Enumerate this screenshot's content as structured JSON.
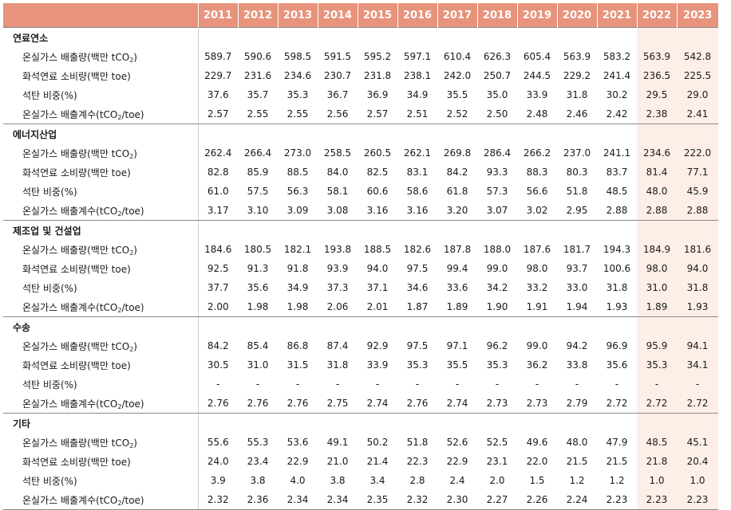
{
  "years": [
    "2011",
    "2012",
    "2013",
    "2014",
    "2015",
    "2016",
    "2017",
    "2018",
    "2019",
    "2020",
    "2021",
    "2022",
    "2023"
  ],
  "sections": [
    {
      "category": "연료연소",
      "rows": [
        {
          "label": "온실가스 배출량(백만 tCO₂)",
          "values": [
            "589.7",
            "590.6",
            "598.5",
            "591.5",
            "595.2",
            "597.1",
            "610.4",
            "626.3",
            "605.4",
            "563.9",
            "583.2",
            "563.9",
            "542.8"
          ]
        },
        {
          "label": "화석연료 소비량(백만 toe)",
          "values": [
            "229.7",
            "231.6",
            "234.6",
            "230.7",
            "231.8",
            "238.1",
            "242.0",
            "250.7",
            "244.5",
            "229.2",
            "241.4",
            "236.5",
            "225.5"
          ]
        },
        {
          "label": "석탄 비중(%)",
          "values": [
            "37.6",
            "35.7",
            "35.3",
            "36.7",
            "36.9",
            "34.9",
            "35.5",
            "35.0",
            "33.9",
            "31.8",
            "30.2",
            "29.5",
            "29.0"
          ]
        },
        {
          "label": "온실가스 배출계수(tCO₂/toe)",
          "values": [
            "2.57",
            "2.55",
            "2.55",
            "2.56",
            "2.57",
            "2.51",
            "2.52",
            "2.50",
            "2.48",
            "2.46",
            "2.42",
            "2.38",
            "2.41"
          ]
        }
      ]
    },
    {
      "category": "에너지산업",
      "rows": [
        {
          "label": "온실가스 배출량(백만 tCO₂)",
          "values": [
            "262.4",
            "266.4",
            "273.0",
            "258.5",
            "260.5",
            "262.1",
            "269.8",
            "286.4",
            "266.2",
            "237.0",
            "241.1",
            "234.6",
            "222.0"
          ]
        },
        {
          "label": "화석연료 소비량(백만 toe)",
          "values": [
            "82.8",
            "85.9",
            "88.5",
            "84.0",
            "82.5",
            "83.1",
            "84.2",
            "93.3",
            "88.3",
            "80.3",
            "83.7",
            "81.4",
            "77.1"
          ]
        },
        {
          "label": "석탄 비중(%)",
          "values": [
            "61.0",
            "57.5",
            "56.3",
            "58.1",
            "60.6",
            "58.6",
            "61.8",
            "57.3",
            "56.6",
            "51.8",
            "48.5",
            "48.0",
            "45.9"
          ]
        },
        {
          "label": "온실가스 배출계수(tCO₂/toe)",
          "values": [
            "3.17",
            "3.10",
            "3.09",
            "3.08",
            "3.16",
            "3.16",
            "3.20",
            "3.07",
            "3.02",
            "2.95",
            "2.88",
            "2.88",
            "2.88"
          ]
        }
      ]
    },
    {
      "category": "제조업 및 건설업",
      "rows": [
        {
          "label": "온실가스 배출량(백만 tCO₂)",
          "values": [
            "184.6",
            "180.5",
            "182.1",
            "193.8",
            "188.5",
            "182.6",
            "187.8",
            "188.0",
            "187.6",
            "181.7",
            "194.3",
            "184.9",
            "181.6"
          ]
        },
        {
          "label": "화석연료 소비량(백만 toe)",
          "values": [
            "92.5",
            "91.3",
            "91.8",
            "93.9",
            "94.0",
            "97.5",
            "99.4",
            "99.0",
            "98.0",
            "93.7",
            "100.6",
            "98.0",
            "94.0"
          ]
        },
        {
          "label": "석탄 비중(%)",
          "values": [
            "37.7",
            "35.6",
            "34.9",
            "37.3",
            "37.1",
            "34.6",
            "33.6",
            "34.2",
            "33.2",
            "33.0",
            "31.8",
            "31.0",
            "31.8"
          ]
        },
        {
          "label": "온실가스 배출계수(tCO₂/toe)",
          "values": [
            "2.00",
            "1.98",
            "1.98",
            "2.06",
            "2.01",
            "1.87",
            "1.89",
            "1.90",
            "1.91",
            "1.94",
            "1.93",
            "1.89",
            "1.93"
          ]
        }
      ]
    },
    {
      "category": "수송",
      "rows": [
        {
          "label": "온실가스 배출량(백만 tCO₂)",
          "values": [
            "84.2",
            "85.4",
            "86.8",
            "87.4",
            "92.9",
            "97.5",
            "97.1",
            "96.2",
            "99.0",
            "94.2",
            "96.9",
            "95.9",
            "94.1"
          ]
        },
        {
          "label": "화석연료 소비량(백만 toe)",
          "values": [
            "30.5",
            "31.0",
            "31.5",
            "31.8",
            "33.9",
            "35.3",
            "35.5",
            "35.3",
            "36.2",
            "33.8",
            "35.6",
            "35.3",
            "34.1"
          ]
        },
        {
          "label": "석탄 비중(%)",
          "values": [
            "-",
            "-",
            "-",
            "-",
            "-",
            "-",
            "-",
            "-",
            "-",
            "-",
            "-",
            "-",
            "-"
          ]
        },
        {
          "label": "온실가스 배출계수(tCO₂/toe)",
          "values": [
            "2.76",
            "2.76",
            "2.76",
            "2.75",
            "2.74",
            "2.76",
            "2.74",
            "2.73",
            "2.73",
            "2.79",
            "2.72",
            "2.72",
            "2.72"
          ]
        }
      ]
    },
    {
      "category": "기타",
      "rows": [
        {
          "label": "온실가스 배출량(백만 tCO₂)",
          "values": [
            "55.6",
            "55.3",
            "53.6",
            "49.1",
            "50.2",
            "51.8",
            "52.6",
            "52.5",
            "49.6",
            "48.0",
            "47.9",
            "48.5",
            "45.1"
          ]
        },
        {
          "label": "화석연료 소비량(백만 toe)",
          "values": [
            "24.0",
            "23.4",
            "22.9",
            "21.0",
            "21.4",
            "22.3",
            "22.9",
            "23.1",
            "22.0",
            "21.5",
            "21.5",
            "21.8",
            "20.4"
          ]
        },
        {
          "label": "석탄 비중(%)",
          "values": [
            "3.9",
            "3.8",
            "4.0",
            "3.8",
            "3.4",
            "2.8",
            "2.4",
            "2.0",
            "1.5",
            "1.2",
            "1.2",
            "1.0",
            "1.0"
          ]
        },
        {
          "label": "온실가스 배출계수(tCO₂/toe)",
          "values": [
            "2.32",
            "2.36",
            "2.34",
            "2.34",
            "2.35",
            "2.32",
            "2.30",
            "2.27",
            "2.26",
            "2.24",
            "2.23",
            "2.23",
            "2.23"
          ]
        }
      ]
    }
  ],
  "highlight_years": [
    "2022",
    "2023"
  ],
  "colors": {
    "header_bg": "#e8937b",
    "highlight_bg": "#fdefe8"
  }
}
